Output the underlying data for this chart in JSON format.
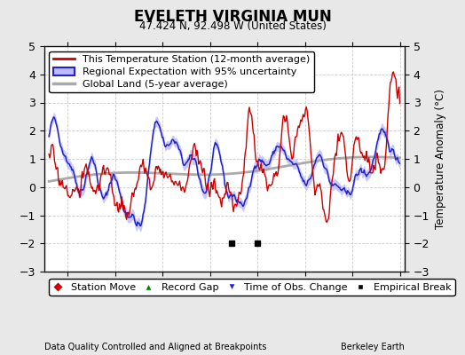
{
  "title": "EVELETH VIRGINIA MUN",
  "subtitle": "47.424 N, 92.498 W (United States)",
  "ylabel": "Temperature Anomaly (°C)",
  "xlabel_left": "Data Quality Controlled and Aligned at Breakpoints",
  "xlabel_right": "Berkeley Earth",
  "xlim": [
    1977.5,
    2015.5
  ],
  "ylim": [
    -3,
    5
  ],
  "yticks": [
    -3,
    -2,
    -1,
    0,
    1,
    2,
    3,
    4,
    5
  ],
  "xticks": [
    1980,
    1985,
    1990,
    1995,
    2000,
    2005,
    2010,
    2015
  ],
  "plot_bg": "#ffffff",
  "fig_bg": "#e8e8e8",
  "grid_color": "#cccccc",
  "red_line_color": "#cc0000",
  "blue_line_color": "#2222cc",
  "blue_fill_color": "#bbbbff",
  "gray_line_color": "#aaaaaa",
  "empirical_break_years": [
    1997.3,
    2000.0
  ],
  "legend_fontsize": 8,
  "tick_fontsize": 9
}
